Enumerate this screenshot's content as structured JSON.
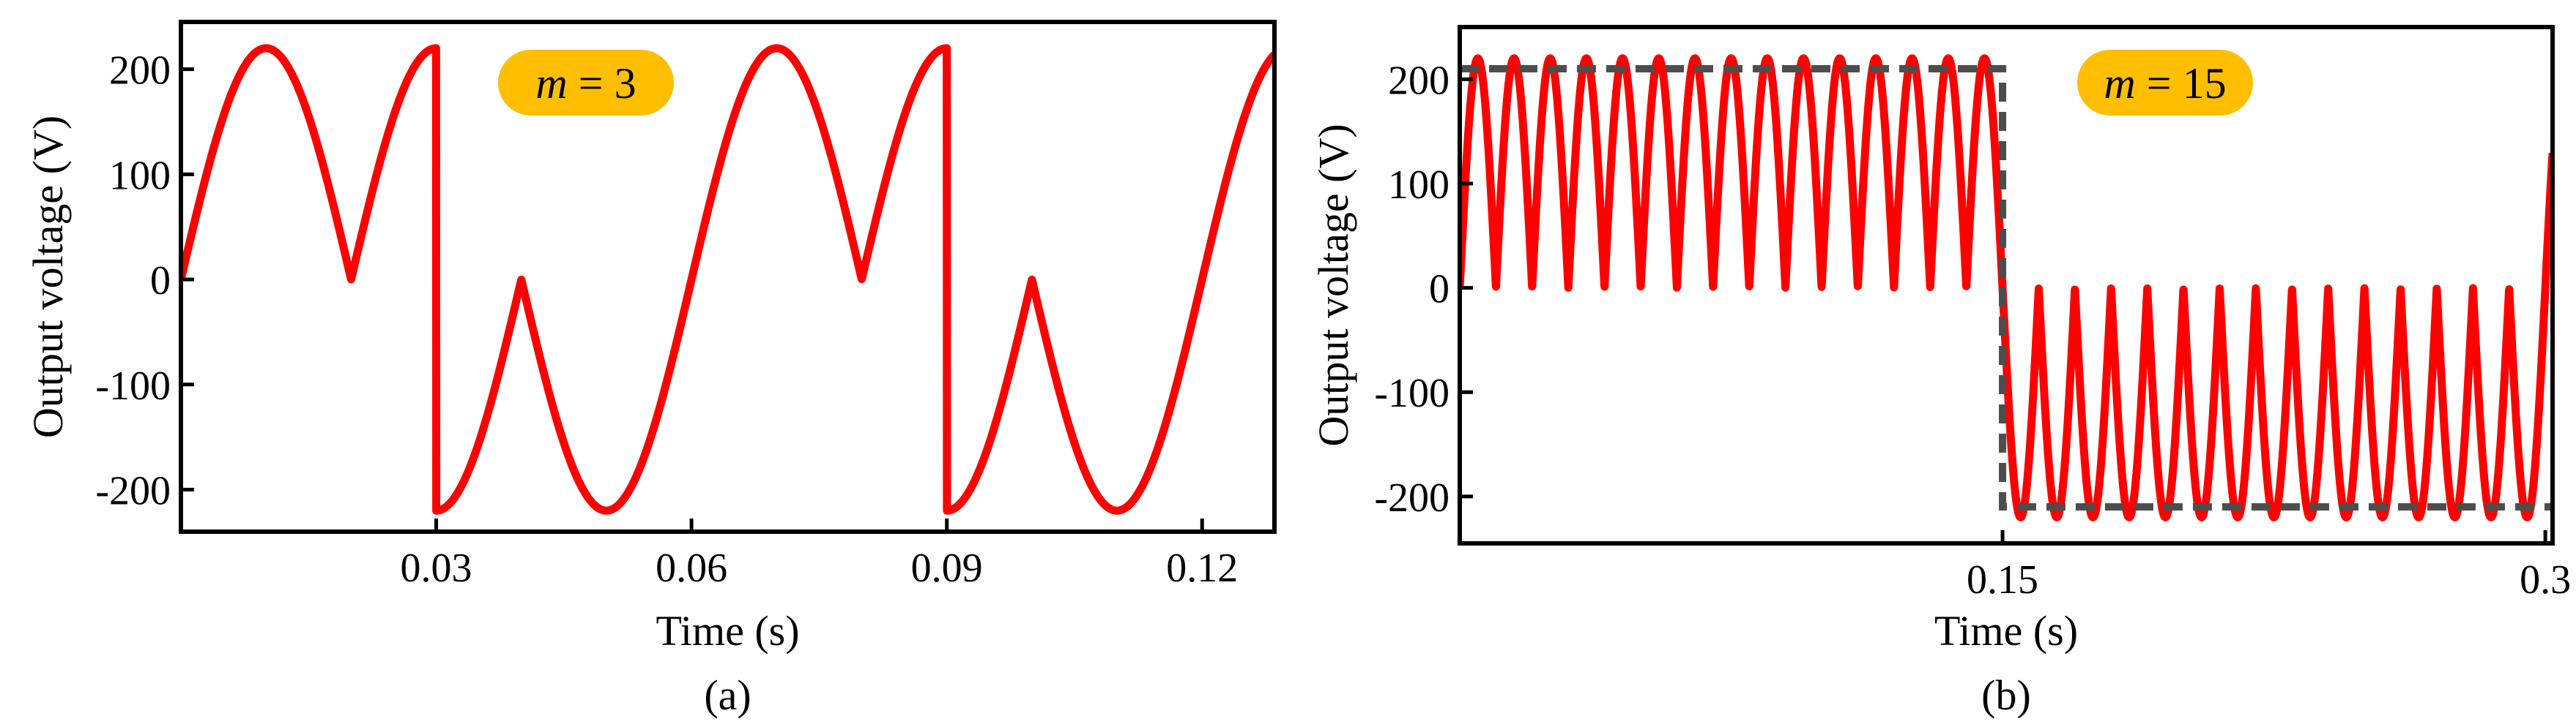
{
  "chart_data": [
    {
      "type": "line",
      "caption": "(a)",
      "xlabel": "Time (s)",
      "ylabel": "Output voltage (V)",
      "xlim": [
        0,
        0.1285
      ],
      "ylim": [
        -240,
        245
      ],
      "xticks": [
        0.03,
        0.06,
        0.09,
        0.12
      ],
      "xtick_labels": [
        "0.03",
        "0.06",
        "0.09",
        "0.12"
      ],
      "yticks": [
        200,
        100,
        0,
        -100,
        -200
      ],
      "ytick_labels": [
        "200",
        "100",
        "0",
        "-100",
        "-200"
      ],
      "grid": false,
      "annotation": {
        "italic": "m",
        "rest": " = 3"
      },
      "series": [
        {
          "color": "#ff0000",
          "style": "solid",
          "description_m": 3,
          "amplitude": 220,
          "carrier_period": 0.02,
          "reference_period": 0.06
        }
      ]
    },
    {
      "type": "line",
      "caption": "(b)",
      "xlabel": "Time (s)",
      "ylabel": "Output voltage (V)",
      "xlim": [
        0,
        0.302
      ],
      "ylim": [
        -245,
        250
      ],
      "xticks": [
        0.15,
        0.3
      ],
      "xtick_labels": [
        "0.15",
        "0.3"
      ],
      "yticks": [
        200,
        100,
        0,
        -100,
        -200
      ],
      "ytick_labels": [
        "200",
        "100",
        "0",
        "-100",
        "-200"
      ],
      "grid": false,
      "annotation": {
        "italic": "m",
        "rest": " = 15"
      },
      "series": [
        {
          "color": "#ff0000",
          "style": "solid",
          "description_m": 15,
          "amplitude": 220,
          "carrier_period": 0.01,
          "reference_period": 0.3
        },
        {
          "color": "#4d4d4d",
          "style": "dashed",
          "x": [
            0,
            0.15,
            0.15,
            0.302
          ],
          "y": [
            210,
            210,
            -210,
            -210
          ]
        }
      ]
    }
  ],
  "colors": {
    "signal": "#ff0000",
    "envelope": "#4d4d4d",
    "badge": "#ffbf00"
  }
}
